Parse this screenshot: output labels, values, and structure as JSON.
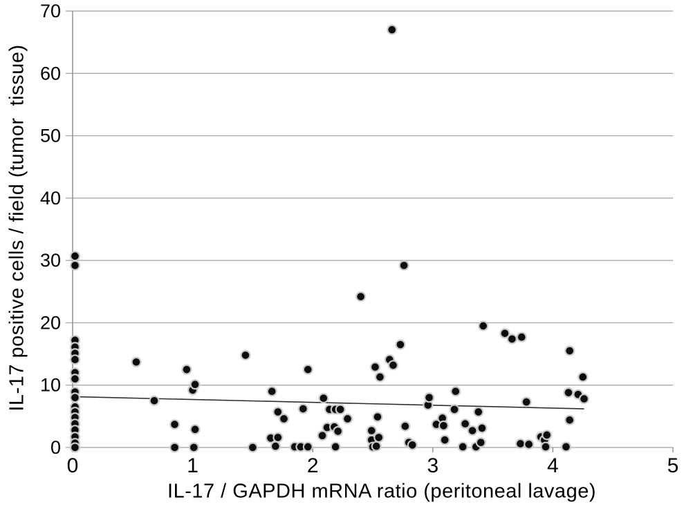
{
  "chart_data": {
    "type": "scatter",
    "title": "",
    "xlabel": "IL-17 / GAPDH mRNA ratio (peritoneal lavage)",
    "ylabel": "IL-17 positive cells / field (tumor  tissue)",
    "xlim": [
      0,
      5
    ],
    "ylim": [
      0,
      70
    ],
    "x_ticks": [
      0,
      1,
      2,
      3,
      4,
      5
    ],
    "y_ticks": [
      0,
      10,
      20,
      30,
      40,
      50,
      60,
      70
    ],
    "grid": "horizontal",
    "legend": "none",
    "colors": {
      "marker": "#0d0d0d",
      "marker_halo": "#c9c9c9",
      "grid": "#a0a0a0",
      "axis": "#8a8a8a",
      "text": "#000000"
    },
    "trend_line": {
      "x1": 0,
      "y1": 8.15,
      "x2": 4.26,
      "y2": 6.2,
      "color": "#2e2e2e"
    },
    "points": [
      [
        0.02,
        30.7
      ],
      [
        0.02,
        29.2
      ],
      [
        0.02,
        17.2
      ],
      [
        0.02,
        16.1
      ],
      [
        0.02,
        15.1
      ],
      [
        0.02,
        14.1
      ],
      [
        0.02,
        12.0
      ],
      [
        0.02,
        11.0
      ],
      [
        0.02,
        8.9
      ],
      [
        0.02,
        8.0
      ],
      [
        0.02,
        6.5
      ],
      [
        0.02,
        5.7
      ],
      [
        0.02,
        4.8
      ],
      [
        0.02,
        3.8
      ],
      [
        0.02,
        2.8
      ],
      [
        0.02,
        1.7
      ],
      [
        0.02,
        0.7
      ],
      [
        0.02,
        0.0
      ],
      [
        0.53,
        13.7
      ],
      [
        0.68,
        7.5
      ],
      [
        0.85,
        3.7
      ],
      [
        0.85,
        0.0
      ],
      [
        0.95,
        12.5
      ],
      [
        1.0,
        9.2
      ],
      [
        1.02,
        10.1
      ],
      [
        1.02,
        2.9
      ],
      [
        1.01,
        0.0
      ],
      [
        1.44,
        14.8
      ],
      [
        1.5,
        0.0
      ],
      [
        1.66,
        9.0
      ],
      [
        1.71,
        5.7
      ],
      [
        1.76,
        4.6
      ],
      [
        1.65,
        1.5
      ],
      [
        1.71,
        1.6
      ],
      [
        1.69,
        0.2
      ],
      [
        1.85,
        0.1
      ],
      [
        1.9,
        0.1
      ],
      [
        1.96,
        0.1
      ],
      [
        1.92,
        6.2
      ],
      [
        1.96,
        12.5
      ],
      [
        2.08,
        1.9
      ],
      [
        2.09,
        7.9
      ],
      [
        2.12,
        3.2
      ],
      [
        2.14,
        6.1
      ],
      [
        2.18,
        3.3
      ],
      [
        2.19,
        6.1
      ],
      [
        2.21,
        2.6
      ],
      [
        2.23,
        6.1
      ],
      [
        2.19,
        0.1
      ],
      [
        2.29,
        4.6
      ],
      [
        2.4,
        24.2
      ],
      [
        2.49,
        2.7
      ],
      [
        2.49,
        1.2
      ],
      [
        2.5,
        0.1
      ],
      [
        2.53,
        0.2
      ],
      [
        2.54,
        4.9
      ],
      [
        2.55,
        1.6
      ],
      [
        2.52,
        12.9
      ],
      [
        2.56,
        11.3
      ],
      [
        2.64,
        14.1
      ],
      [
        2.66,
        67.0
      ],
      [
        2.67,
        13.2
      ],
      [
        2.73,
        16.5
      ],
      [
        2.76,
        29.2
      ],
      [
        2.77,
        3.4
      ],
      [
        2.8,
        0.8
      ],
      [
        2.83,
        0.4
      ],
      [
        2.96,
        6.8
      ],
      [
        2.97,
        8.0
      ],
      [
        3.03,
        3.7
      ],
      [
        3.08,
        4.7
      ],
      [
        3.09,
        3.5
      ],
      [
        3.1,
        1.2
      ],
      [
        3.18,
        6.1
      ],
      [
        3.19,
        9.0
      ],
      [
        3.25,
        0.1
      ],
      [
        3.27,
        3.8
      ],
      [
        3.33,
        2.7
      ],
      [
        3.36,
        0.1
      ],
      [
        3.38,
        5.7
      ],
      [
        3.4,
        0.8
      ],
      [
        3.41,
        3.1
      ],
      [
        3.42,
        19.5
      ],
      [
        3.6,
        18.3
      ],
      [
        3.66,
        17.4
      ],
      [
        3.74,
        17.7
      ],
      [
        3.73,
        0.6
      ],
      [
        3.8,
        0.5
      ],
      [
        3.78,
        7.3
      ],
      [
        3.9,
        1.7
      ],
      [
        3.93,
        1.2
      ],
      [
        3.95,
        2.0
      ],
      [
        3.94,
        0.1
      ],
      [
        4.11,
        0.1
      ],
      [
        4.13,
        8.8
      ],
      [
        4.14,
        15.5
      ],
      [
        4.14,
        4.4
      ],
      [
        4.21,
        8.5
      ],
      [
        4.25,
        11.3
      ],
      [
        4.26,
        7.8
      ]
    ]
  }
}
